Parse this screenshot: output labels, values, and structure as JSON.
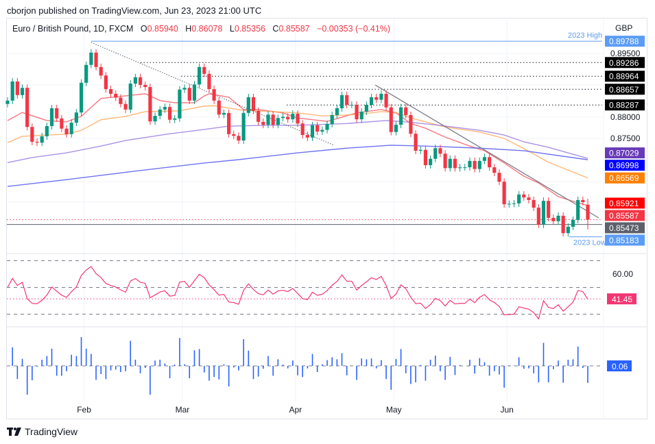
{
  "publisher_line": "cborjon published on TradingView.com, Jun 23, 2023 21:00 UTC",
  "legend": {
    "symbol": "Euro / British Pound, 1D, FXCM",
    "o_label": "O",
    "o": "0.85940",
    "h_label": "H",
    "h": "0.86078",
    "l_label": "L",
    "l": "0.85356",
    "c_label": "C",
    "c": "0.85587",
    "change": "−0.00353 (−0.41%)"
  },
  "logo_text": "TradingView",
  "chart_data": {
    "type": "candlestick",
    "currency": "GBP",
    "y_ticks": [
      "0.89500",
      "0.88000",
      "0.87500"
    ],
    "x_ticks": [
      "Feb",
      "Mar",
      "Apr",
      "May",
      "Jun"
    ],
    "x_tick_indices": [
      15,
      35,
      58,
      78,
      101
    ],
    "last_candle": {
      "open": 0.8594,
      "high": 0.86078,
      "low": 0.85356,
      "close": 0.85587
    },
    "closes": [
      0.8839,
      0.8884,
      0.8852,
      0.8869,
      0.8777,
      0.8742,
      0.874,
      0.8755,
      0.8779,
      0.8821,
      0.8797,
      0.8773,
      0.876,
      0.8787,
      0.8811,
      0.8881,
      0.8923,
      0.8952,
      0.8918,
      0.8898,
      0.8866,
      0.8855,
      0.8846,
      0.8831,
      0.8818,
      0.8879,
      0.8894,
      0.8876,
      0.8871,
      0.879,
      0.8803,
      0.8818,
      0.8824,
      0.8794,
      0.8797,
      0.8865,
      0.8869,
      0.8839,
      0.8877,
      0.8918,
      0.8902,
      0.8866,
      0.8839,
      0.8806,
      0.881,
      0.876,
      0.8756,
      0.8745,
      0.881,
      0.8847,
      0.8815,
      0.8789,
      0.8782,
      0.8806,
      0.8782,
      0.8798,
      0.8801,
      0.8795,
      0.8808,
      0.8785,
      0.8758,
      0.8752,
      0.8781,
      0.8766,
      0.877,
      0.8784,
      0.8805,
      0.8821,
      0.8852,
      0.8829,
      0.8829,
      0.8795,
      0.8813,
      0.8829,
      0.8847,
      0.8841,
      0.8855,
      0.8823,
      0.8765,
      0.8782,
      0.8823,
      0.8805,
      0.8761,
      0.8721,
      0.8723,
      0.8687,
      0.8702,
      0.8727,
      0.8714,
      0.868,
      0.8702,
      0.868,
      0.8682,
      0.8682,
      0.8697,
      0.8678,
      0.8697,
      0.8706,
      0.8682,
      0.8669,
      0.8648,
      0.8595,
      0.8596,
      0.8597,
      0.8618,
      0.8611,
      0.8605,
      0.8587,
      0.8547,
      0.8603,
      0.8563,
      0.8555,
      0.8568,
      0.8527,
      0.8542,
      0.8558,
      0.8605,
      0.86,
      0.85587
    ],
    "moving_averages": [
      {
        "color": "#f7525f",
        "last": "0.85921",
        "points": [
          [
            0,
            0.8792
          ],
          [
            3,
            0.8811
          ],
          [
            8,
            0.8792
          ],
          [
            12,
            0.8789
          ],
          [
            15,
            0.8802
          ],
          [
            19,
            0.8844
          ],
          [
            28,
            0.8855
          ],
          [
            31,
            0.8839
          ],
          [
            34,
            0.8834
          ],
          [
            38,
            0.8834
          ],
          [
            40,
            0.885
          ],
          [
            41,
            0.8855
          ],
          [
            45,
            0.8847
          ],
          [
            48,
            0.8818
          ],
          [
            51,
            0.8818
          ],
          [
            56,
            0.881
          ],
          [
            59,
            0.8798
          ],
          [
            65,
            0.879
          ],
          [
            71,
            0.881
          ],
          [
            76,
            0.8818
          ],
          [
            79,
            0.881
          ],
          [
            82,
            0.8785
          ],
          [
            85,
            0.8774
          ],
          [
            89,
            0.8753
          ],
          [
            94,
            0.8732
          ],
          [
            97,
            0.8721
          ],
          [
            101,
            0.8692
          ],
          [
            105,
            0.8661
          ],
          [
            108,
            0.8645
          ],
          [
            112,
            0.8613
          ],
          [
            115,
            0.8602
          ],
          [
            118,
            0.8592
          ]
        ]
      },
      {
        "color": "#ffa552",
        "last": "0.86569",
        "points": [
          [
            0,
            0.874
          ],
          [
            3,
            0.8755
          ],
          [
            8,
            0.8758
          ],
          [
            12,
            0.876
          ],
          [
            15,
            0.8769
          ],
          [
            19,
            0.8794
          ],
          [
            24,
            0.8802
          ],
          [
            28,
            0.8813
          ],
          [
            35,
            0.8815
          ],
          [
            40,
            0.8826
          ],
          [
            42,
            0.8827
          ],
          [
            48,
            0.8816
          ],
          [
            54,
            0.8813
          ],
          [
            59,
            0.881
          ],
          [
            64,
            0.8803
          ],
          [
            71,
            0.8806
          ],
          [
            76,
            0.8813
          ],
          [
            79,
            0.8811
          ],
          [
            83,
            0.8795
          ],
          [
            89,
            0.8777
          ],
          [
            96,
            0.8765
          ],
          [
            101,
            0.875
          ],
          [
            105,
            0.8726
          ],
          [
            110,
            0.8694
          ],
          [
            118,
            0.86569
          ]
        ]
      },
      {
        "color": "#9575e0",
        "last": "0.87029",
        "points": [
          [
            0,
            0.8693
          ],
          [
            5,
            0.8705
          ],
          [
            12,
            0.8716
          ],
          [
            19,
            0.8732
          ],
          [
            24,
            0.8745
          ],
          [
            33,
            0.8761
          ],
          [
            38,
            0.8768
          ],
          [
            45,
            0.8779
          ],
          [
            54,
            0.8781
          ],
          [
            59,
            0.8781
          ],
          [
            69,
            0.8785
          ],
          [
            77,
            0.8792
          ],
          [
            80,
            0.879
          ],
          [
            87,
            0.8782
          ],
          [
            96,
            0.8769
          ],
          [
            101,
            0.8758
          ],
          [
            105,
            0.8742
          ],
          [
            110,
            0.8729
          ],
          [
            118,
            0.87029
          ]
        ]
      },
      {
        "color": "#4a4ef0",
        "last": "0.86998",
        "points": [
          [
            0,
            0.8637
          ],
          [
            12,
            0.8653
          ],
          [
            26,
            0.8673
          ],
          [
            40,
            0.8692
          ],
          [
            47,
            0.87
          ],
          [
            59,
            0.8716
          ],
          [
            69,
            0.8727
          ],
          [
            78,
            0.8734
          ],
          [
            85,
            0.8732
          ],
          [
            96,
            0.8727
          ],
          [
            105,
            0.8721
          ],
          [
            118,
            0.86998
          ]
        ]
      }
    ],
    "levels": [
      {
        "price": 0.89286,
        "label": "0.89286"
      },
      {
        "price": 0.88964,
        "label": "0.88964"
      },
      {
        "price": 0.88657,
        "label": "0.88657"
      },
      {
        "price": 0.88287,
        "label": "0.88287"
      }
    ],
    "year_high": {
      "label": "2023 High",
      "value": "0.89788",
      "price": 0.89788
    },
    "year_low": {
      "label": "2023 Low",
      "value": "0.85183",
      "price": 0.85183
    },
    "close_tag": "0.85587",
    "support_tag": {
      "value": "0.85473",
      "price": 0.85473
    },
    "rsi": {
      "level_label": "60.00",
      "last": "41.45",
      "bands": [
        70,
        50,
        30
      ],
      "color": "#f23674"
    },
    "histogram": {
      "last": "0.06",
      "color": "#2962ff"
    },
    "colors": {
      "up": "#089981",
      "down": "#f23645"
    }
  }
}
